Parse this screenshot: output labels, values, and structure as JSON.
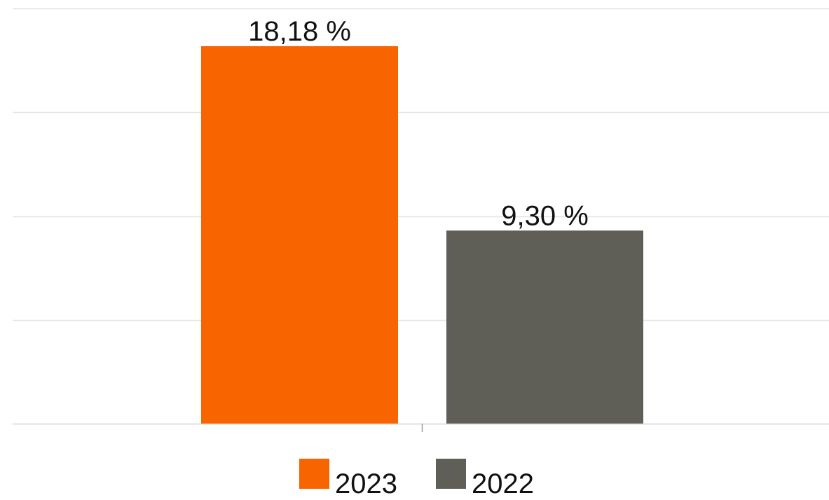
{
  "chart_data": {
    "type": "bar",
    "categories": [
      ""
    ],
    "series": [
      {
        "name": "2023",
        "values": [
          18.18
        ],
        "label": "18,18 %"
      },
      {
        "name": "2022",
        "values": [
          9.3
        ],
        "label": "9,30 %"
      }
    ],
    "title": "",
    "xlabel": "",
    "ylabel": "",
    "ylim": [
      0,
      20
    ],
    "grid": true,
    "legend_position": "bottom",
    "colors": [
      "#f86500",
      "#5f5f57"
    ],
    "gridline_color": "#e3e3e3",
    "axis_color": "#d6d6d6"
  }
}
